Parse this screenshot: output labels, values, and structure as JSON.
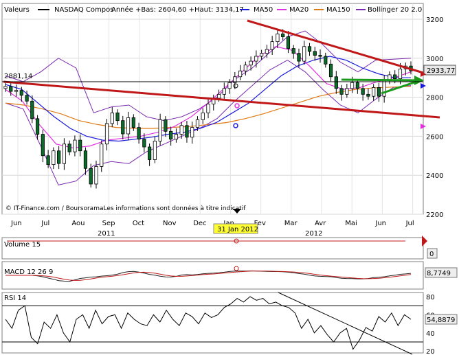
{
  "chart_data": {
    "type": "candlestick",
    "legend": {
      "items": [
        {
          "label": "Valeurs",
          "color": "#000000"
        },
        {
          "label": "NASDAQ Compos",
          "color": "#000000"
        },
        {
          "label": "Année +Bas: 2604,60 +Haut: 3134,17",
          "color": null
        },
        {
          "label": "MA50",
          "color": "#1a1adb"
        },
        {
          "label": "MA20",
          "color": "#e030e0"
        },
        {
          "label": "MA150",
          "color": "#e07a14"
        },
        {
          "label": "Bollinger 20 2.0",
          "color": "#7a2ab0"
        }
      ]
    },
    "price_axis": {
      "ticks": [
        "3200",
        "3000",
        "2800",
        "2600",
        "2400",
        "2200"
      ],
      "min": 2200,
      "max": 3200
    },
    "price_markers": {
      "left_label": "2881,14",
      "level": 2881.14,
      "last_value": "2933,77",
      "last": 2933.77
    },
    "x_months": [
      "Jun",
      "Jul",
      "Aou",
      "Sep",
      "Oct",
      "Nov",
      "Dec",
      "Jan",
      "Fev",
      "Mar",
      "Avr",
      "Mai",
      "Jun",
      "Jul"
    ],
    "years": [
      "2011",
      "2012"
    ],
    "date_marker": "31 Jan 2012",
    "credit": "© IT-Finance.com / BoursoramaLes informations sont données à titre indicatif",
    "closes": [
      2855,
      2830,
      2835,
      2810,
      2780,
      2690,
      2610,
      2500,
      2455,
      2525,
      2460,
      2560,
      2520,
      2580,
      2525,
      2435,
      2355,
      2445,
      2560,
      2665,
      2720,
      2680,
      2612,
      2695,
      2645,
      2585,
      2545,
      2480,
      2575,
      2685,
      2625,
      2585,
      2610,
      2655,
      2595,
      2645,
      2685,
      2720,
      2765,
      2795,
      2815,
      2845,
      2875,
      2905,
      2935,
      2965,
      2985,
      3010,
      3025,
      3045,
      3085,
      3125,
      3110,
      3050,
      3025,
      2985,
      3060,
      3035,
      3015,
      3010,
      2970,
      2905,
      2845,
      2815,
      2845,
      2875,
      2845,
      2815,
      2805,
      2850,
      2805,
      2885,
      2915,
      2895,
      2945,
      2960,
      2935
    ],
    "sma50": [
      2865,
      2840,
      2770,
      2700,
      2640,
      2600,
      2580,
      2575,
      2585,
      2595,
      2610,
      2620,
      2640,
      2670,
      2720,
      2770,
      2840,
      2910,
      2960,
      2990,
      3010,
      2990,
      2950,
      2920,
      2900,
      2900
    ],
    "ema20": [
      2840,
      2780,
      2660,
      2560,
      2540,
      2550,
      2580,
      2590,
      2600,
      2620,
      2650,
      2700,
      2770,
      2850,
      2930,
      3010,
      3060,
      3040,
      2960,
      2870,
      2840,
      2850,
      2880,
      2900,
      2930
    ],
    "ma150": [
      2770,
      2760,
      2740,
      2715,
      2680,
      2660,
      2645,
      2640,
      2640,
      2645,
      2650,
      2660,
      2670,
      2690,
      2715,
      2745,
      2775,
      2805,
      2825,
      2840,
      2848,
      2852,
      2856
    ],
    "boll_upper": [
      2910,
      2880,
      2930,
      3000,
      2950,
      2720,
      2750,
      2760,
      2700,
      2680,
      2700,
      2740,
      2800,
      2890,
      2950,
      3030,
      3110,
      3140,
      3070,
      2980,
      2930,
      2990,
      2995,
      3000
    ],
    "boll_lower": [
      2770,
      2740,
      2550,
      2350,
      2370,
      2450,
      2470,
      2460,
      2520,
      2560,
      2600,
      2640,
      2690,
      2780,
      2860,
      2940,
      2990,
      2930,
      2840,
      2760,
      2720,
      2790,
      2850,
      2860
    ],
    "volume": {
      "label": "Volume 15",
      "last": "0"
    },
    "macd": {
      "label": "MACD 12 26 9",
      "last": "8,7749"
    },
    "rsi": {
      "label": "RSI 14",
      "last": "54,8879",
      "ticks": [
        "80",
        "60",
        "40",
        "20"
      ],
      "values": [
        55,
        45,
        65,
        70,
        35,
        28,
        52,
        45,
        60,
        40,
        30,
        55,
        60,
        45,
        65,
        50,
        58,
        60,
        45,
        62,
        55,
        50,
        48,
        60,
        52,
        65,
        55,
        48,
        62,
        58,
        50,
        62,
        57,
        60,
        68,
        72,
        78,
        74,
        80,
        76,
        78,
        72,
        74,
        70,
        68,
        62,
        45,
        55,
        40,
        48,
        38,
        30,
        40,
        45,
        22,
        32,
        46,
        42,
        58,
        52,
        62,
        48,
        60,
        55
      ]
    }
  }
}
